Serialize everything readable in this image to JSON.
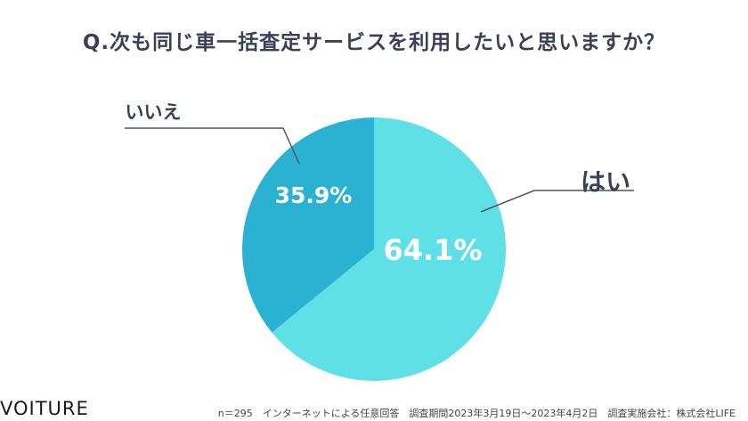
{
  "title": "Q.次も同じ車一括査定サービスを利用したいと思いますか？",
  "chart_data": {
    "type": "pie",
    "categories": [
      "はい",
      "いいえ"
    ],
    "values": [
      64.1,
      35.9
    ],
    "value_labels": [
      "64.1%",
      "35.9%"
    ],
    "colors": [
      "#5ee0e6",
      "#2bb2d3"
    ],
    "start": "12 o'clock, clockwise"
  },
  "logo": "VOITURE",
  "footer": "n＝295　インターネットによる任意回答　調査期間2023年3月19日〜2023年4月2日　調査実施会社：株式会社LIFE"
}
